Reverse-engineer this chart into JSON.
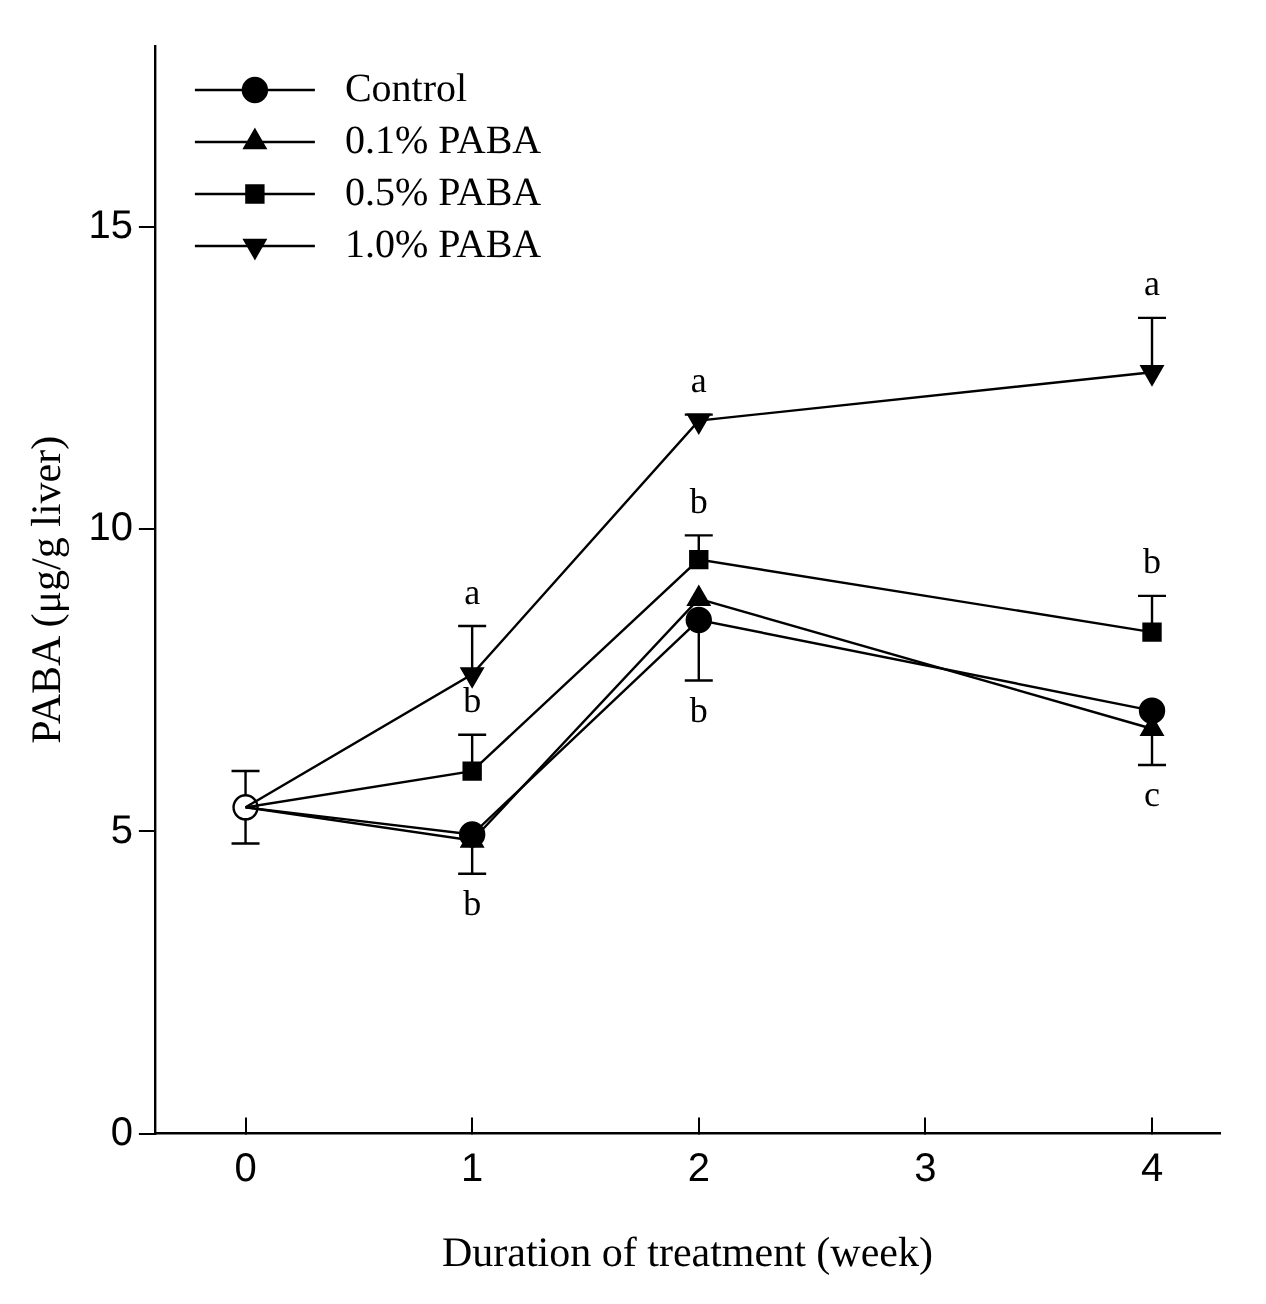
{
  "chart_data": {
    "type": "line",
    "xlabel": "Duration of treatment (week)",
    "ylabel": "PABA (μg/g liver)",
    "xlim": [
      -0.4,
      4.3
    ],
    "xticks": [
      0,
      1,
      2,
      3,
      4
    ],
    "ylim": [
      0,
      18
    ],
    "yticks": [
      0,
      5,
      10,
      15
    ],
    "grid": false,
    "legend": "top left",
    "series": [
      {
        "name": "Control",
        "color": "#000000",
        "marker": "circle",
        "x": [
          0,
          1,
          2,
          4
        ],
        "values": [
          5.4,
          4.95,
          8.5,
          7.0
        ],
        "errors": [
          null,
          null,
          [
            7.5,
            8.5
          ],
          null
        ]
      },
      {
        "name": "0.1% PABA",
        "color": "#000000",
        "marker": "triangle",
        "x": [
          0,
          1,
          2,
          4
        ],
        "values": [
          5.4,
          4.85,
          8.85,
          6.7
        ],
        "errors": [
          null,
          [
            4.3,
            4.85
          ],
          null,
          [
            6.1,
            6.7
          ]
        ]
      },
      {
        "name": "0.5% PABA",
        "color": "#000000",
        "marker": "square",
        "x": [
          0,
          1,
          2,
          4
        ],
        "values": [
          5.4,
          6.0,
          9.5,
          8.3
        ],
        "errors": [
          null,
          [
            6.0,
            6.6
          ],
          [
            9.5,
            9.9
          ],
          [
            8.3,
            8.9
          ]
        ]
      },
      {
        "name": "1.0% PABA",
        "color": "#000000",
        "marker": "triangle-down",
        "x": [
          0,
          1,
          2,
          4
        ],
        "values": [
          5.4,
          7.6,
          11.8,
          12.6
        ],
        "errors": [
          null,
          [
            7.6,
            8.4
          ],
          [
            11.8,
            11.9
          ],
          [
            12.6,
            13.5
          ]
        ]
      },
      {
        "color": "#ffffff",
        "marker": "circle",
        "x": [
          0
        ],
        "values": [
          5.4
        ],
        "errors": [
          0.6
        ]
      }
    ],
    "annotations": [
      {
        "text": "a",
        "x": 1,
        "y": 7.6
      },
      {
        "text": "b",
        "x": 1,
        "y": 6.0
      },
      {
        "text": "b",
        "x": 1,
        "y": 4.85
      },
      {
        "text": "a",
        "x": 2,
        "y": 11.8
      },
      {
        "text": "b",
        "x": 2,
        "y": 9.5
      },
      {
        "text": "b",
        "x": 2,
        "y": 8.5
      },
      {
        "text": "a",
        "x": 4,
        "y": 12.6
      },
      {
        "text": "b",
        "x": 4,
        "y": 8.3
      },
      {
        "text": "c",
        "x": 4,
        "y": 6.7
      }
    ]
  }
}
